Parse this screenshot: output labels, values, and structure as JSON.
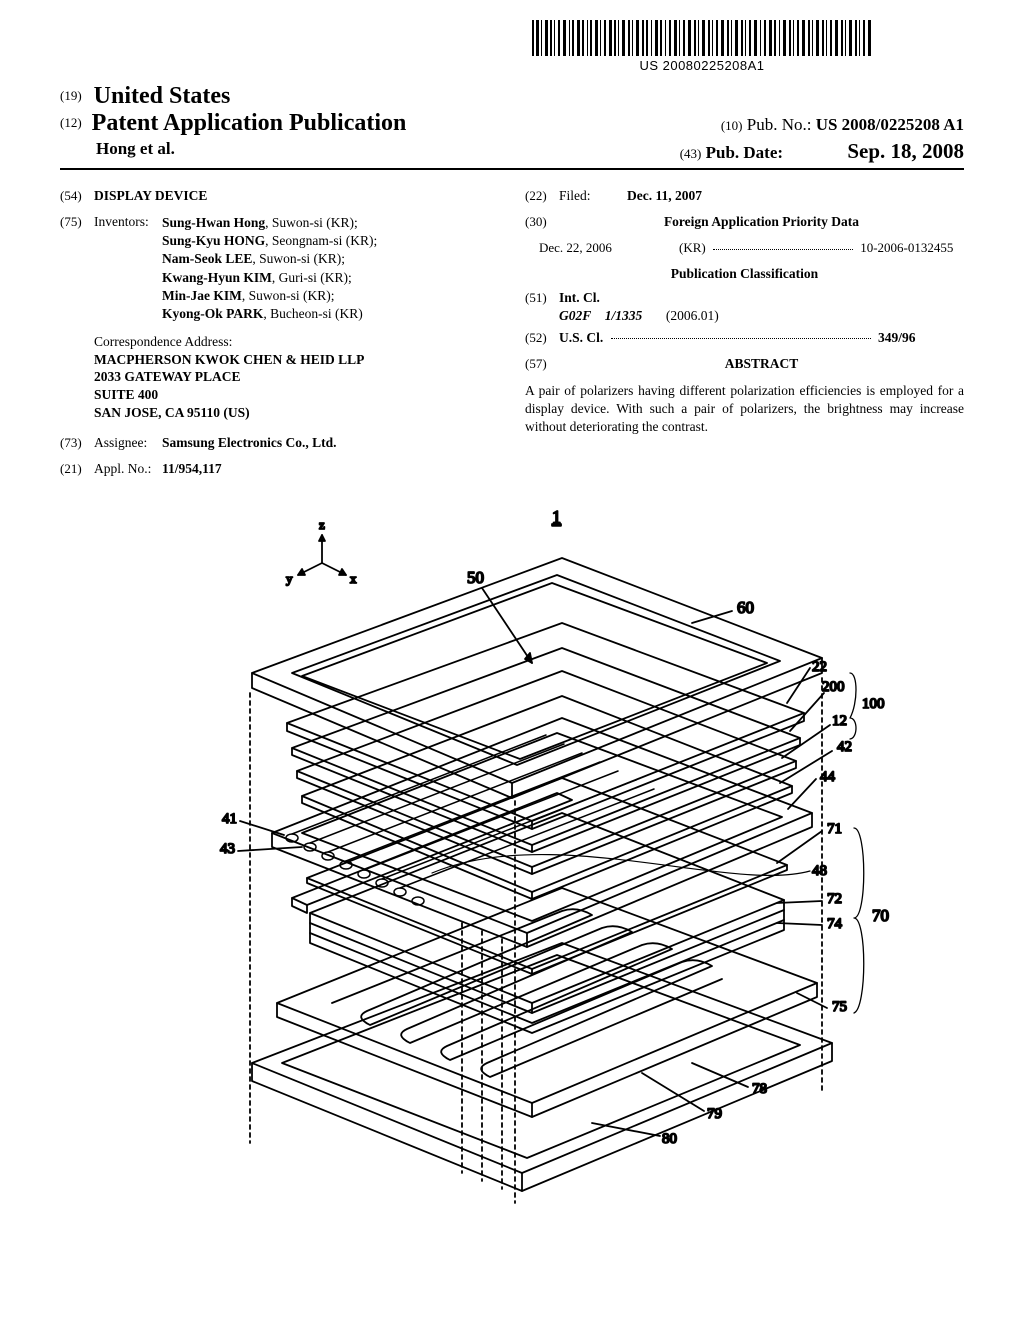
{
  "barcode_text": "US 20080225208A1",
  "header": {
    "line1_code": "(19)",
    "line1_text": "United States",
    "line2_code": "(12)",
    "line2_text": "Patent Application Publication",
    "authors": "Hong et al.",
    "pubno_code": "(10)",
    "pubno_label": "Pub. No.:",
    "pubno_value": "US 2008/0225208 A1",
    "pubdate_code": "(43)",
    "pubdate_label": "Pub. Date:",
    "pubdate_value": "Sep. 18, 2008"
  },
  "left_col": {
    "title_code": "(54)",
    "title": "DISPLAY DEVICE",
    "inventors_code": "(75)",
    "inventors_label": "Inventors:",
    "inventors": [
      {
        "name": "Sung-Hwan Hong",
        "loc": ", Suwon-si (KR);"
      },
      {
        "name": "Sung-Kyu HONG",
        "loc": ", Seongnam-si (KR);"
      },
      {
        "name": "Nam-Seok LEE",
        "loc": ", Suwon-si (KR);"
      },
      {
        "name": "Kwang-Hyun KIM",
        "loc": ", Guri-si (KR);"
      },
      {
        "name": "Min-Jae KIM",
        "loc": ", Suwon-si (KR);"
      },
      {
        "name": "Kyong-Ok PARK",
        "loc": ", Bucheon-si (KR)"
      }
    ],
    "corr_label": "Correspondence Address:",
    "corr_lines": [
      "MACPHERSON KWOK CHEN & HEID LLP",
      "2033 GATEWAY PLACE",
      "SUITE 400",
      "SAN JOSE, CA 95110 (US)"
    ],
    "assignee_code": "(73)",
    "assignee_label": "Assignee:",
    "assignee_value": "Samsung Electronics Co., Ltd.",
    "applno_code": "(21)",
    "applno_label": "Appl. No.:",
    "applno_value": "11/954,117"
  },
  "right_col": {
    "filed_code": "(22)",
    "filed_label": "Filed:",
    "filed_value": "Dec. 11, 2007",
    "foreign_code": "(30)",
    "foreign_heading": "Foreign Application Priority Data",
    "priority_date": "Dec. 22, 2006",
    "priority_country": "(KR)",
    "priority_number": "10-2006-0132455",
    "pubclass_heading": "Publication Classification",
    "intcl_code": "(51)",
    "intcl_label": "Int. Cl.",
    "intcl_class": "G02F",
    "intcl_sub": "1/1335",
    "intcl_date": "(2006.01)",
    "uscl_code": "(52)",
    "uscl_label": "U.S. Cl.",
    "uscl_value": "349/96",
    "abstract_code": "(57)",
    "abstract_heading": "ABSTRACT",
    "abstract_text": "A pair of polarizers having different polarization efficiencies is employed for a display device. With such a pair of polarizers, the brightness may increase without deteriorating the contrast."
  },
  "figure": {
    "ref_top": "1",
    "axes": {
      "x": "x",
      "y": "y",
      "z": "z"
    },
    "labels": {
      "50": "50",
      "60": "60",
      "22": "22",
      "200": "200",
      "100": "100",
      "12": "12",
      "42": "42",
      "44": "44",
      "41": "41",
      "43": "43",
      "71": "71",
      "48": "48",
      "72": "72",
      "74": "74",
      "70": "70",
      "75": "75",
      "78": "78",
      "79": "79",
      "80": "80"
    }
  }
}
